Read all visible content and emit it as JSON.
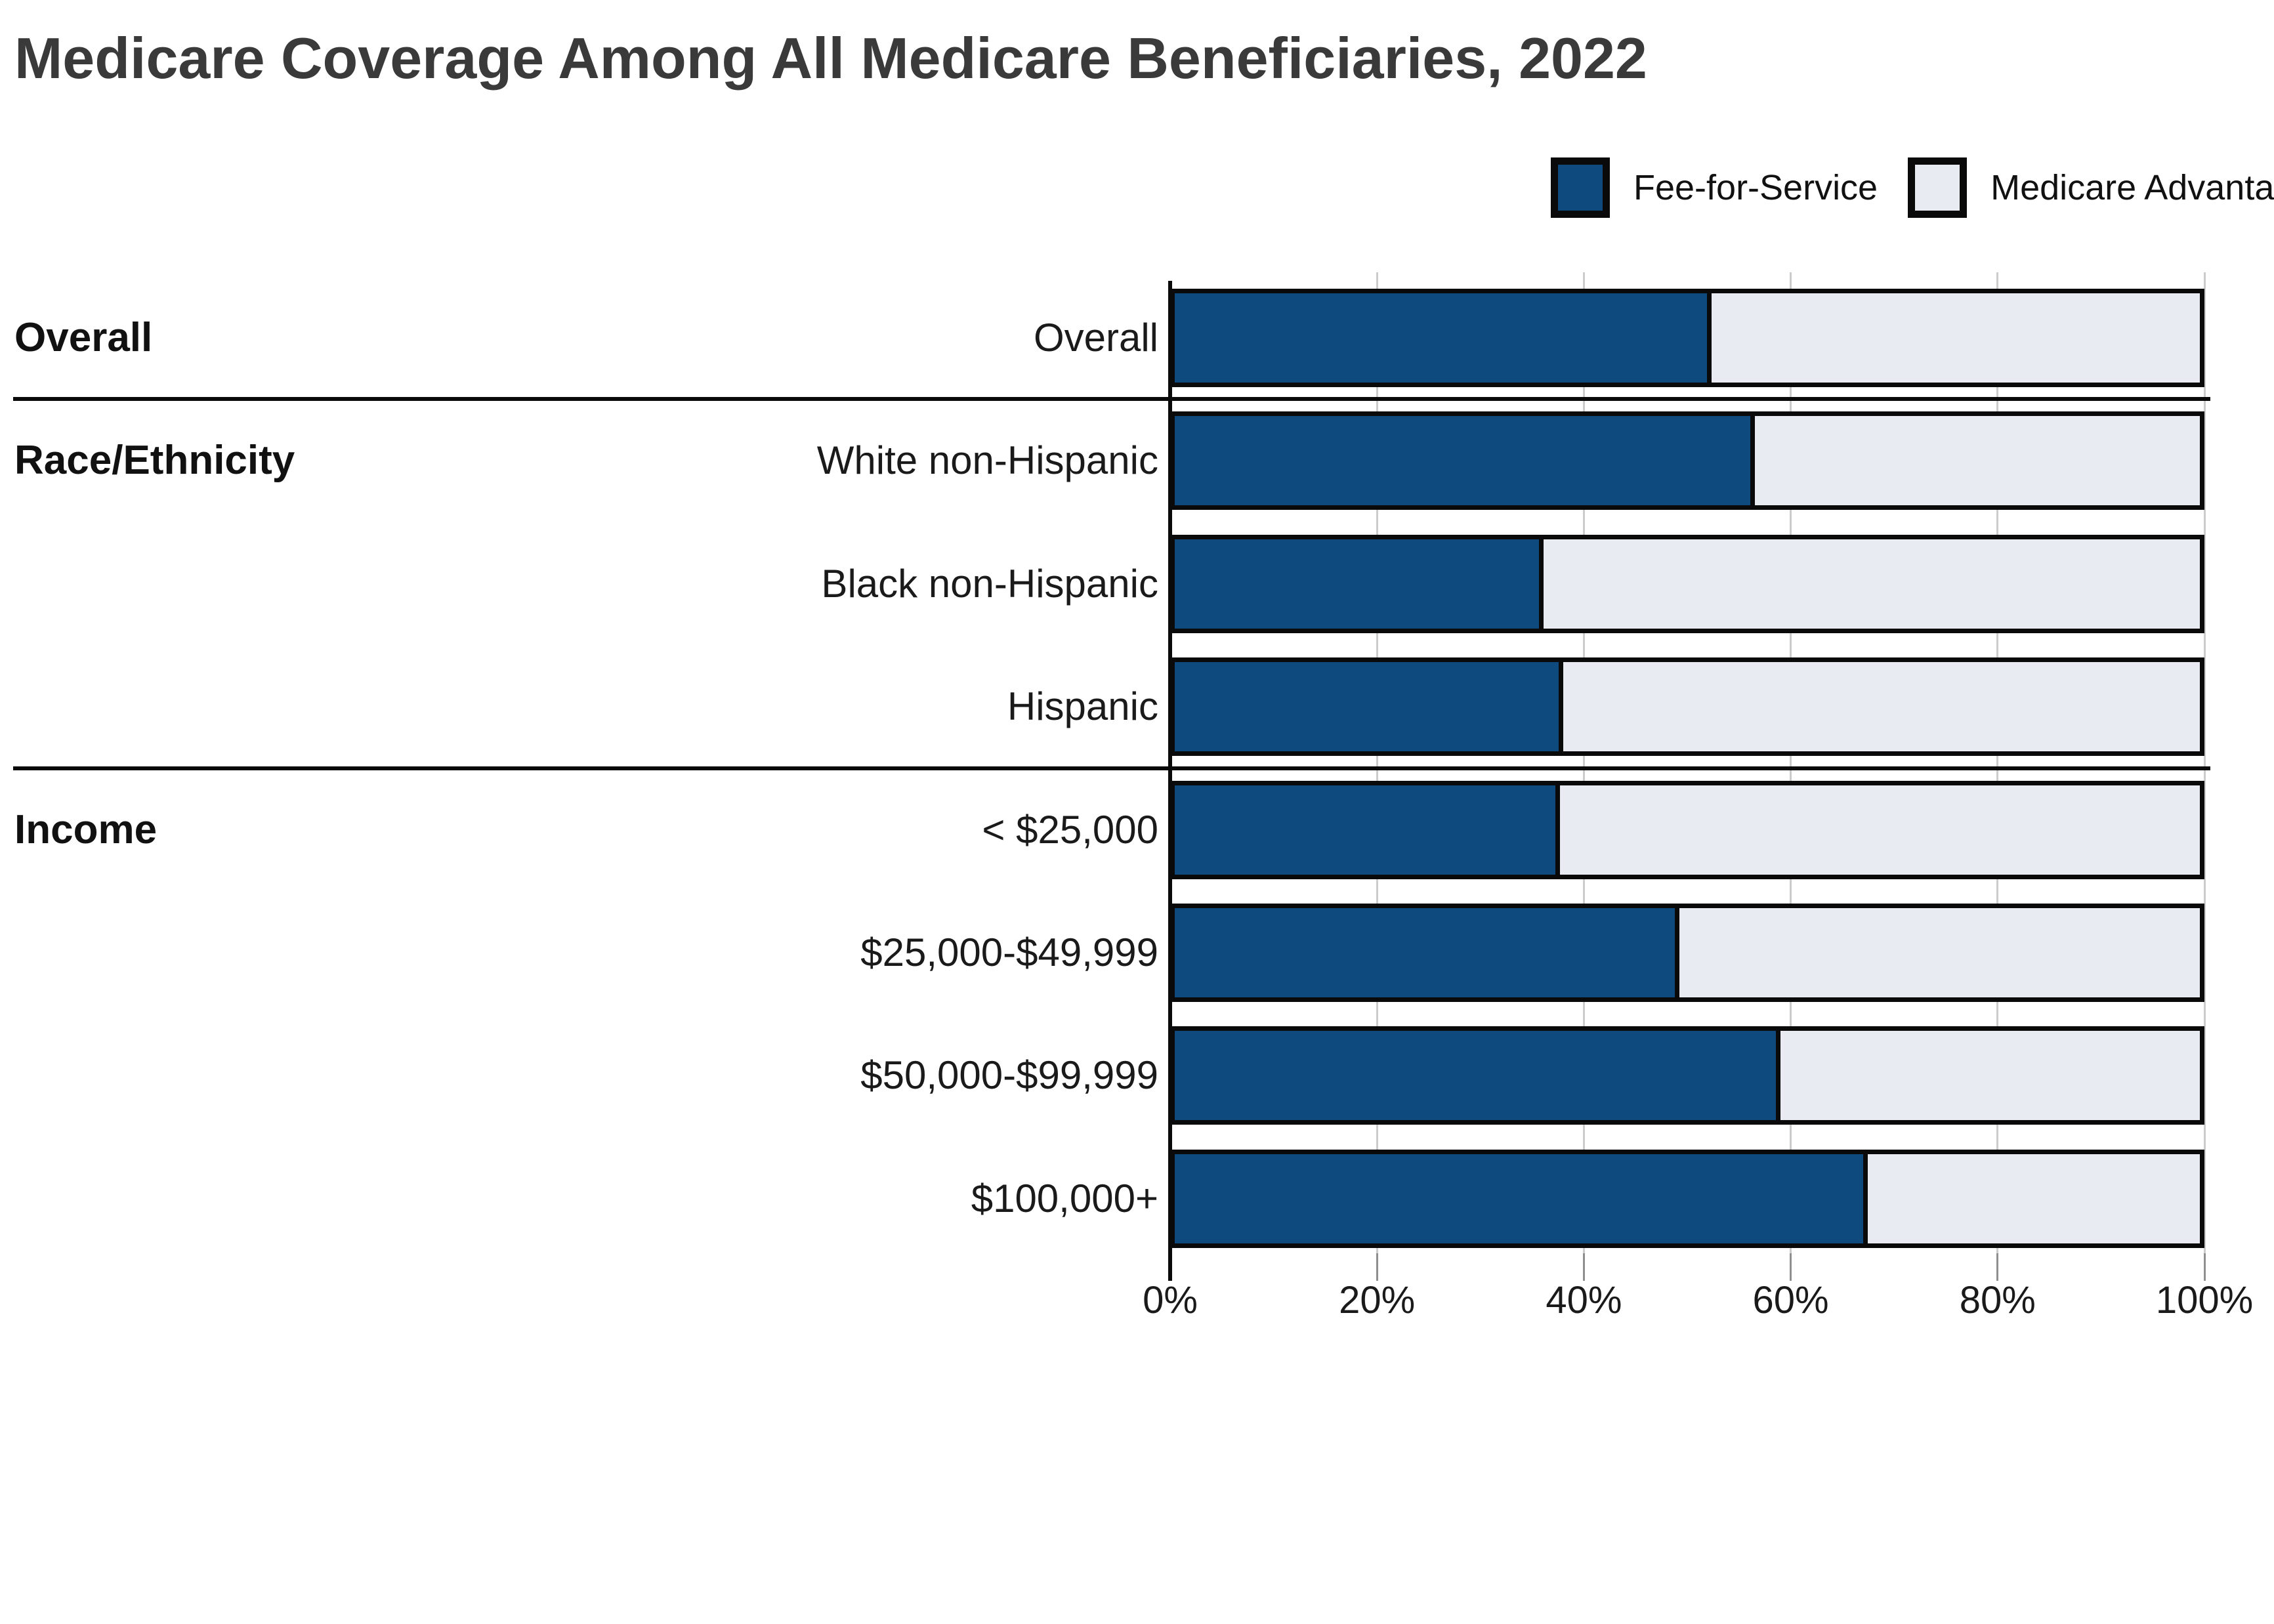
{
  "title": "Medicare Coverage Among All Medicare Beneficiaries, 2022",
  "legend": {
    "items": [
      {
        "label": "Fee-for-Service",
        "color": "#0e4a7e"
      },
      {
        "label": "Medicare Advantage",
        "color": "#e8ebf2"
      }
    ]
  },
  "colors": {
    "fee_for_service": "#0e4a7e",
    "medicare_advantage": "#e8ebf2",
    "bar_border": "#0a0a0a",
    "gridline": "#cccccc",
    "title_text": "#3a3a3a",
    "label_text": "#1a1a1a"
  },
  "chart_data": {
    "type": "bar",
    "orientation": "horizontal",
    "stacked": true,
    "unit": "percent",
    "title": "Medicare Coverage Among All Medicare Beneficiaries, 2022",
    "xlabel": "",
    "ylabel": "",
    "xlim": [
      0,
      100
    ],
    "x_ticks": [
      "0%",
      "20%",
      "40%",
      "60%",
      "80%",
      "100%"
    ],
    "grid": true,
    "legend_position": "top-right",
    "series_names": [
      "Fee-for-Service",
      "Medicare Advantage"
    ],
    "sections": [
      {
        "label": "Overall",
        "rows": [
          {
            "category": "Overall",
            "fee_for_service": 52.4,
            "medicare_advantage": 47.6
          }
        ]
      },
      {
        "label": "Race/Ethnicity",
        "rows": [
          {
            "category": "White non-Hispanic",
            "fee_for_service": 56.6,
            "medicare_advantage": 43.4
          },
          {
            "category": "Black non-Hispanic",
            "fee_for_service": 36.0,
            "medicare_advantage": 64.0
          },
          {
            "category": "Hispanic",
            "fee_for_service": 37.9,
            "medicare_advantage": 62.1
          }
        ]
      },
      {
        "label": "Income",
        "rows": [
          {
            "category": "< $25,000",
            "fee_for_service": 37.6,
            "medicare_advantage": 62.4
          },
          {
            "category": "$25,000-$49,999",
            "fee_for_service": 49.2,
            "medicare_advantage": 50.8
          },
          {
            "category": "$50,000-$99,999",
            "fee_for_service": 59.1,
            "medicare_advantage": 40.9
          },
          {
            "category": "$100,000+",
            "fee_for_service": 67.6,
            "medicare_advantage": 32.4
          }
        ]
      }
    ]
  }
}
